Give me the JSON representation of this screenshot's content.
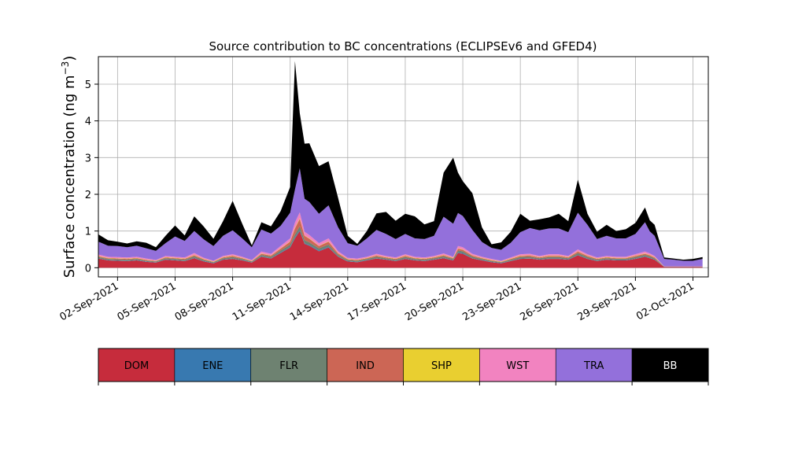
{
  "chart_data": {
    "type": "area",
    "stacked": true,
    "title": "Source contribution to BC concentrations (ECLIPSEv6 and GFED4)",
    "ylabel_main": "Surface concentration (ng m",
    "ylabel_sup": "−3",
    "ylabel_close": ")",
    "xlabel": "",
    "xlim_day": [
      0.0,
      31.8
    ],
    "ylim": [
      -0.25,
      5.75
    ],
    "grid": true,
    "x_ticks": [
      {
        "day": 1,
        "label": "02-Sep-2021"
      },
      {
        "day": 4,
        "label": "05-Sep-2021"
      },
      {
        "day": 7,
        "label": "08-Sep-2021"
      },
      {
        "day": 10,
        "label": "11-Sep-2021"
      },
      {
        "day": 13,
        "label": "14-Sep-2021"
      },
      {
        "day": 16,
        "label": "17-Sep-2021"
      },
      {
        "day": 19,
        "label": "20-Sep-2021"
      },
      {
        "day": 22,
        "label": "23-Sep-2021"
      },
      {
        "day": 25,
        "label": "26-Sep-2021"
      },
      {
        "day": 28,
        "label": "29-Sep-2021"
      },
      {
        "day": 31,
        "label": "02-Oct-2021"
      }
    ],
    "y_ticks": [
      0,
      1,
      2,
      3,
      4,
      5
    ],
    "series_colors": {
      "DOM": "#c62c3c",
      "ENE": "#3879b0",
      "FLR": "#6e8271",
      "IND": "#cc6655",
      "SHP": "#e9cf30",
      "WST": "#f283c0",
      "TRA": "#9370db",
      "BB": "#000000"
    },
    "x_day": [
      0.0,
      0.5,
      1.0,
      1.5,
      2.0,
      2.5,
      3.0,
      3.5,
      4.0,
      4.5,
      5.0,
      5.5,
      6.0,
      6.5,
      7.0,
      7.5,
      8.0,
      8.5,
      9.0,
      9.5,
      10.0,
      10.25,
      10.5,
      10.75,
      11.0,
      11.5,
      12.0,
      12.5,
      13.0,
      13.5,
      14.0,
      14.5,
      15.0,
      15.5,
      16.0,
      16.5,
      17.0,
      17.5,
      18.0,
      18.5,
      18.75,
      19.0,
      19.5,
      20.0,
      20.5,
      21.0,
      21.5,
      22.0,
      22.5,
      23.0,
      23.5,
      24.0,
      24.5,
      25.0,
      25.5,
      26.0,
      26.5,
      27.0,
      27.5,
      28.0,
      28.5,
      28.75,
      29.0,
      29.5,
      30.0,
      30.5,
      31.0,
      31.5
    ],
    "series": [
      {
        "name": "DOM",
        "values": [
          0.25,
          0.2,
          0.19,
          0.18,
          0.2,
          0.16,
          0.14,
          0.22,
          0.2,
          0.18,
          0.26,
          0.17,
          0.12,
          0.22,
          0.24,
          0.2,
          0.14,
          0.3,
          0.25,
          0.4,
          0.55,
          0.8,
          1.0,
          0.65,
          0.6,
          0.45,
          0.55,
          0.3,
          0.17,
          0.15,
          0.2,
          0.25,
          0.22,
          0.18,
          0.24,
          0.2,
          0.18,
          0.22,
          0.26,
          0.2,
          0.4,
          0.38,
          0.25,
          0.2,
          0.15,
          0.12,
          0.18,
          0.24,
          0.25,
          0.22,
          0.24,
          0.24,
          0.22,
          0.34,
          0.24,
          0.18,
          0.22,
          0.2,
          0.2,
          0.24,
          0.3,
          0.26,
          0.22,
          0.02,
          0.02,
          0.02,
          0.02,
          0.02
        ]
      },
      {
        "name": "ENE",
        "values": [
          0.01,
          0.01,
          0.01,
          0.01,
          0.01,
          0.01,
          0.01,
          0.01,
          0.01,
          0.01,
          0.01,
          0.01,
          0.01,
          0.01,
          0.01,
          0.01,
          0.01,
          0.01,
          0.01,
          0.02,
          0.02,
          0.03,
          0.03,
          0.02,
          0.02,
          0.02,
          0.02,
          0.01,
          0.01,
          0.01,
          0.01,
          0.01,
          0.01,
          0.01,
          0.01,
          0.01,
          0.01,
          0.01,
          0.01,
          0.01,
          0.02,
          0.02,
          0.01,
          0.01,
          0.01,
          0.01,
          0.01,
          0.01,
          0.01,
          0.01,
          0.01,
          0.01,
          0.01,
          0.01,
          0.01,
          0.01,
          0.01,
          0.01,
          0.01,
          0.01,
          0.01,
          0.01,
          0.01,
          0.005,
          0.005,
          0.005,
          0.005,
          0.005
        ]
      },
      {
        "name": "FLR",
        "values": [
          0.03,
          0.03,
          0.03,
          0.03,
          0.03,
          0.02,
          0.02,
          0.03,
          0.03,
          0.03,
          0.04,
          0.03,
          0.02,
          0.03,
          0.04,
          0.03,
          0.02,
          0.04,
          0.04,
          0.05,
          0.06,
          0.08,
          0.1,
          0.08,
          0.07,
          0.06,
          0.06,
          0.04,
          0.03,
          0.03,
          0.03,
          0.04,
          0.03,
          0.03,
          0.04,
          0.03,
          0.03,
          0.03,
          0.04,
          0.03,
          0.05,
          0.05,
          0.04,
          0.03,
          0.02,
          0.02,
          0.03,
          0.04,
          0.04,
          0.03,
          0.04,
          0.04,
          0.03,
          0.05,
          0.04,
          0.03,
          0.03,
          0.03,
          0.03,
          0.04,
          0.04,
          0.04,
          0.03,
          0.005,
          0.005,
          0.005,
          0.005,
          0.005
        ]
      },
      {
        "name": "IND",
        "values": [
          0.02,
          0.02,
          0.02,
          0.02,
          0.02,
          0.02,
          0.01,
          0.02,
          0.02,
          0.02,
          0.03,
          0.02,
          0.01,
          0.02,
          0.03,
          0.02,
          0.01,
          0.03,
          0.03,
          0.05,
          0.08,
          0.16,
          0.2,
          0.12,
          0.1,
          0.06,
          0.08,
          0.04,
          0.02,
          0.02,
          0.02,
          0.03,
          0.02,
          0.02,
          0.03,
          0.02,
          0.02,
          0.02,
          0.03,
          0.02,
          0.05,
          0.04,
          0.03,
          0.02,
          0.02,
          0.01,
          0.02,
          0.03,
          0.03,
          0.02,
          0.03,
          0.03,
          0.02,
          0.04,
          0.03,
          0.02,
          0.02,
          0.02,
          0.02,
          0.03,
          0.03,
          0.03,
          0.02,
          0.003,
          0.003,
          0.003,
          0.003,
          0.003
        ]
      },
      {
        "name": "SHP",
        "values": [
          0.01,
          0.01,
          0.01,
          0.01,
          0.01,
          0.01,
          0.01,
          0.01,
          0.01,
          0.01,
          0.01,
          0.01,
          0.01,
          0.01,
          0.01,
          0.01,
          0.01,
          0.01,
          0.01,
          0.01,
          0.01,
          0.02,
          0.02,
          0.01,
          0.01,
          0.01,
          0.01,
          0.01,
          0.01,
          0.01,
          0.01,
          0.01,
          0.01,
          0.01,
          0.01,
          0.01,
          0.01,
          0.01,
          0.01,
          0.01,
          0.01,
          0.01,
          0.01,
          0.01,
          0.01,
          0.01,
          0.01,
          0.01,
          0.01,
          0.01,
          0.01,
          0.01,
          0.01,
          0.01,
          0.01,
          0.01,
          0.01,
          0.01,
          0.01,
          0.01,
          0.01,
          0.01,
          0.01,
          0.002,
          0.002,
          0.002,
          0.002,
          0.002
        ]
      },
      {
        "name": "WST",
        "values": [
          0.04,
          0.03,
          0.03,
          0.03,
          0.03,
          0.03,
          0.02,
          0.03,
          0.03,
          0.03,
          0.05,
          0.03,
          0.02,
          0.03,
          0.04,
          0.03,
          0.02,
          0.05,
          0.04,
          0.06,
          0.08,
          0.14,
          0.16,
          0.1,
          0.09,
          0.07,
          0.08,
          0.05,
          0.03,
          0.03,
          0.03,
          0.04,
          0.03,
          0.03,
          0.04,
          0.03,
          0.03,
          0.03,
          0.04,
          0.03,
          0.06,
          0.06,
          0.04,
          0.03,
          0.03,
          0.02,
          0.03,
          0.04,
          0.04,
          0.03,
          0.04,
          0.04,
          0.03,
          0.05,
          0.04,
          0.03,
          0.03,
          0.03,
          0.03,
          0.04,
          0.05,
          0.04,
          0.03,
          0.005,
          0.005,
          0.005,
          0.005,
          0.005
        ]
      },
      {
        "name": "TRA",
        "values": [
          0.35,
          0.3,
          0.3,
          0.28,
          0.3,
          0.28,
          0.25,
          0.35,
          0.55,
          0.45,
          0.6,
          0.5,
          0.4,
          0.55,
          0.65,
          0.5,
          0.35,
          0.6,
          0.55,
          0.55,
          0.7,
          0.9,
          1.2,
          0.9,
          0.9,
          0.8,
          0.9,
          0.65,
          0.4,
          0.35,
          0.5,
          0.65,
          0.6,
          0.5,
          0.55,
          0.5,
          0.5,
          0.55,
          1.0,
          0.9,
          0.9,
          0.85,
          0.65,
          0.4,
          0.3,
          0.3,
          0.4,
          0.6,
          0.7,
          0.7,
          0.7,
          0.7,
          0.65,
          1.0,
          0.8,
          0.5,
          0.55,
          0.5,
          0.5,
          0.55,
          0.8,
          0.6,
          0.55,
          0.2,
          0.18,
          0.15,
          0.15,
          0.2
        ]
      },
      {
        "name": "BB",
        "values": [
          0.2,
          0.15,
          0.12,
          0.1,
          0.12,
          0.15,
          0.1,
          0.2,
          0.3,
          0.15,
          0.4,
          0.35,
          0.2,
          0.4,
          0.8,
          0.4,
          0.05,
          0.2,
          0.2,
          0.4,
          0.7,
          3.5,
          1.5,
          1.5,
          1.6,
          1.3,
          1.2,
          0.8,
          0.2,
          0.05,
          0.2,
          0.45,
          0.6,
          0.5,
          0.55,
          0.6,
          0.4,
          0.4,
          1.2,
          1.8,
          1.1,
          0.95,
          1.0,
          0.4,
          0.1,
          0.2,
          0.3,
          0.5,
          0.2,
          0.3,
          0.3,
          0.4,
          0.3,
          0.9,
          0.3,
          0.2,
          0.3,
          0.2,
          0.25,
          0.3,
          0.4,
          0.3,
          0.3,
          0.04,
          0.03,
          0.03,
          0.05,
          0.05
        ]
      }
    ],
    "legend": {
      "placement": "bottom",
      "entries": [
        {
          "label": "DOM",
          "color": "#c62c3c",
          "text_color": "#000000"
        },
        {
          "label": "ENE",
          "color": "#3879b0",
          "text_color": "#000000"
        },
        {
          "label": "FLR",
          "color": "#6e8271",
          "text_color": "#000000"
        },
        {
          "label": "IND",
          "color": "#cc6655",
          "text_color": "#000000"
        },
        {
          "label": "SHP",
          "color": "#e9cf30",
          "text_color": "#000000"
        },
        {
          "label": "WST",
          "color": "#f283c0",
          "text_color": "#000000"
        },
        {
          "label": "TRA",
          "color": "#9370db",
          "text_color": "#000000"
        },
        {
          "label": "BB",
          "color": "#000000",
          "text_color": "#ffffff"
        }
      ]
    }
  }
}
